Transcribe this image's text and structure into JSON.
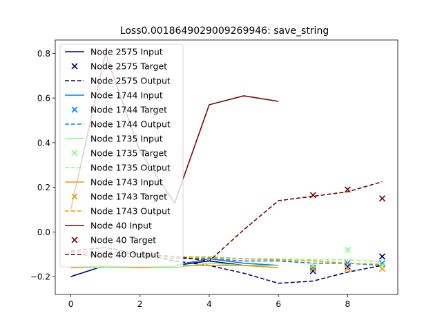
{
  "chart_data": {
    "type": "line",
    "title": "Loss0.0018649029009269946: save_string",
    "xlabel": "",
    "ylabel": "",
    "xlim": [
      -0.45,
      9.45
    ],
    "ylim": [
      -0.28,
      0.86
    ],
    "xticks": [
      0,
      2,
      4,
      6,
      8
    ],
    "xtick_labels": [
      "0",
      "2",
      "4",
      "6",
      "8"
    ],
    "yticks": [
      -0.2,
      0.0,
      0.2,
      0.4,
      0.6,
      0.8
    ],
    "ytick_labels": [
      "−0.2",
      "0.0",
      "0.2",
      "0.4",
      "0.6",
      "0.8"
    ],
    "grid": false,
    "legend_position": "top-left",
    "nodes": [
      {
        "color": "#00007f",
        "input_label": "Node 2575 Input",
        "target_label": "Node 2575 Target",
        "output_label": "Node 2575 Output",
        "input": {
          "x": [
            0,
            1,
            2,
            3,
            4,
            5,
            6
          ],
          "y": [
            -0.2,
            -0.15,
            -0.16,
            -0.15,
            -0.13,
            -0.15,
            -0.15
          ]
        },
        "target": {
          "x": [
            7,
            8,
            9
          ],
          "y": [
            -0.175,
            -0.155,
            -0.11
          ]
        },
        "output": {
          "x": [
            0,
            1,
            2,
            3,
            4,
            5,
            6,
            7,
            8,
            9
          ],
          "y": [
            -0.085,
            -0.07,
            -0.1,
            -0.13,
            -0.15,
            -0.185,
            -0.23,
            -0.22,
            -0.18,
            -0.15
          ]
        }
      },
      {
        "color": "#0080ff",
        "input_label": "Node 1744 Input",
        "target_label": "Node 1744 Target",
        "output_label": "Node 1744 Output",
        "input": {
          "x": [
            0,
            1,
            2,
            3,
            4,
            5,
            6
          ],
          "y": [
            -0.16,
            -0.15,
            -0.16,
            -0.15,
            -0.12,
            -0.14,
            -0.15
          ]
        },
        "target": {
          "x": [
            7,
            8,
            9
          ],
          "y": [
            -0.16,
            -0.14,
            -0.14
          ]
        },
        "output": {
          "x": [
            0,
            1,
            2,
            3,
            4,
            5,
            6,
            7,
            8,
            9
          ],
          "y": [
            -0.1,
            -0.11,
            -0.11,
            -0.12,
            -0.12,
            -0.13,
            -0.13,
            -0.14,
            -0.14,
            -0.15
          ]
        }
      },
      {
        "color": "#7cff79",
        "input_label": "Node 1735 Input",
        "target_label": "Node 1735 Target",
        "output_label": "Node 1735 Output",
        "input": {
          "x": [
            0,
            1,
            2,
            3,
            4,
            5,
            6
          ],
          "y": [
            -0.16,
            -0.16,
            -0.16,
            -0.16,
            -0.14,
            -0.15,
            -0.15
          ]
        },
        "target": {
          "x": [
            7,
            8,
            9
          ],
          "y": [
            -0.15,
            -0.08,
            -0.15
          ]
        },
        "output": {
          "x": [
            0,
            1,
            2,
            3,
            4,
            5,
            6,
            7,
            8,
            9
          ],
          "y": [
            -0.1,
            -0.1,
            -0.11,
            -0.11,
            -0.11,
            -0.12,
            -0.12,
            -0.125,
            -0.125,
            -0.135
          ]
        }
      },
      {
        "color": "#ff9400",
        "input_label": "Node 1743 Input",
        "target_label": "Node 1743 Target",
        "output_label": "Node 1743 Output",
        "input": {
          "x": [
            0,
            1,
            2,
            3,
            4,
            5,
            6
          ],
          "y": [
            -0.16,
            -0.15,
            -0.16,
            -0.15,
            -0.15,
            -0.15,
            -0.16
          ]
        },
        "target": {
          "x": [
            7,
            8,
            9
          ],
          "y": [
            -0.165,
            -0.165,
            -0.165
          ]
        },
        "output": {
          "x": [
            0,
            1,
            2,
            3,
            4,
            5,
            6,
            7,
            8,
            9
          ],
          "y": [
            -0.1,
            -0.105,
            -0.11,
            -0.115,
            -0.115,
            -0.12,
            -0.125,
            -0.13,
            -0.14,
            -0.145
          ]
        }
      },
      {
        "color": "#7f0000",
        "input_label": "Node 40 Input",
        "target_label": "Node 40 Target",
        "output_label": "Node 40 Output",
        "input": {
          "x": [
            0,
            1,
            2,
            3,
            4,
            5,
            6
          ],
          "y": [
            0.1,
            0.8,
            0.36,
            0.13,
            0.57,
            0.61,
            0.585
          ]
        },
        "target": {
          "x": [
            7,
            8,
            9
          ],
          "y": [
            0.165,
            0.19,
            0.15
          ]
        },
        "output": {
          "x": [
            0,
            1,
            2,
            3,
            4,
            5,
            6,
            7,
            8,
            9
          ],
          "y": [
            -0.09,
            -0.09,
            -0.1,
            -0.11,
            -0.13,
            0.01,
            0.14,
            0.16,
            0.18,
            0.225
          ]
        }
      }
    ]
  }
}
